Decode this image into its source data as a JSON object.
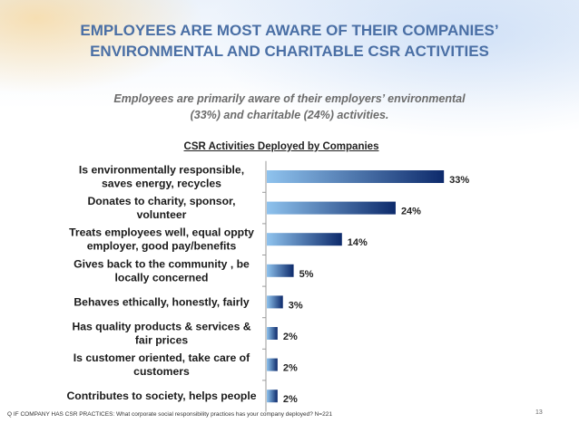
{
  "header": {
    "title_line1": "EMPLOYEES ARE MOST AWARE OF THEIR COMPANIES’",
    "title_line2": "ENVIRONMENTAL AND CHARITABLE CSR ACTIVITIES",
    "subtitle_line1": "Employees are primarily aware of their employers’ environmental",
    "subtitle_line2": "(33%) and charitable (24%) activities."
  },
  "footer": {
    "footnote": "Q IF COMPANY HAS CSR PRACTICES: What corporate social responsibility practices has your company deployed? N=221",
    "page_number": "13"
  },
  "colors": {
    "title": "#4a6fa5",
    "bar_light": "#8fc3ee",
    "bar_dark": "#0d2a6b"
  },
  "chart_data": {
    "type": "bar",
    "orientation": "horizontal",
    "title": "CSR Activities Deployed by Companies",
    "value_unit": "%",
    "xlim": [
      0,
      35
    ],
    "grid": false,
    "categories": [
      [
        "Is environmentally responsible,",
        "saves energy, recycles"
      ],
      [
        "Donates to charity, sponsor,",
        "volunteer"
      ],
      [
        "Treats employees well, equal oppty",
        "employer, good pay/benefits"
      ],
      [
        "Gives back to the community , be",
        "locally concerned"
      ],
      [
        "Behaves ethically, honestly, fairly"
      ],
      [
        "Has quality products & services &",
        "fair prices"
      ],
      [
        "Is customer oriented, take care of",
        "customers"
      ],
      [
        "Contributes to society, helps people"
      ]
    ],
    "values": [
      33,
      24,
      14,
      5,
      3,
      2,
      2,
      2
    ],
    "data_labels": [
      "33%",
      "24%",
      "14%",
      "5%",
      "3%",
      "2%",
      "2%",
      "2%"
    ]
  }
}
